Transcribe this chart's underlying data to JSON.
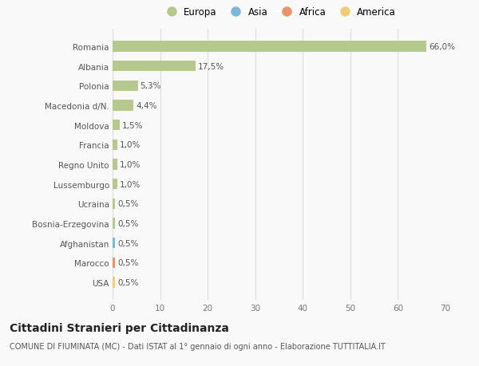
{
  "countries": [
    "Romania",
    "Albania",
    "Polonia",
    "Macedonia d/N.",
    "Moldova",
    "Francia",
    "Regno Unito",
    "Lussemburgo",
    "Ucraina",
    "Bosnia-Erzegovina",
    "Afghanistan",
    "Marocco",
    "USA"
  ],
  "values": [
    66.0,
    17.5,
    5.3,
    4.4,
    1.5,
    1.0,
    1.0,
    1.0,
    0.5,
    0.5,
    0.5,
    0.5,
    0.5
  ],
  "labels": [
    "66,0%",
    "17,5%",
    "5,3%",
    "4,4%",
    "1,5%",
    "1,0%",
    "1,0%",
    "1,0%",
    "0,5%",
    "0,5%",
    "0,5%",
    "0,5%",
    "0,5%"
  ],
  "continents": [
    "Europa",
    "Europa",
    "Europa",
    "Europa",
    "Europa",
    "Europa",
    "Europa",
    "Europa",
    "Europa",
    "Europa",
    "Asia",
    "Africa",
    "America"
  ],
  "continent_colors": {
    "Europa": "#b5c98e",
    "Asia": "#7db8d8",
    "Africa": "#e8956d",
    "America": "#f0cc7a"
  },
  "legend_order": [
    "Europa",
    "Asia",
    "Africa",
    "America"
  ],
  "legend_colors": [
    "#b5c98e",
    "#7db8d8",
    "#e8956d",
    "#f0cc7a"
  ],
  "title": "Cittadini Stranieri per Cittadinanza",
  "subtitle": "COMUNE DI FIUMINATA (MC) - Dati ISTAT al 1° gennaio di ogni anno - Elaborazione TUTTITALIA.IT",
  "xlim": [
    0,
    70
  ],
  "xticks": [
    0,
    10,
    20,
    30,
    40,
    50,
    60,
    70
  ],
  "background_color": "#f9f9f9",
  "grid_color": "#dddddd",
  "bar_height": 0.55,
  "label_fontsize": 7.5,
  "tick_fontsize": 7.5,
  "title_fontsize": 10,
  "subtitle_fontsize": 7
}
